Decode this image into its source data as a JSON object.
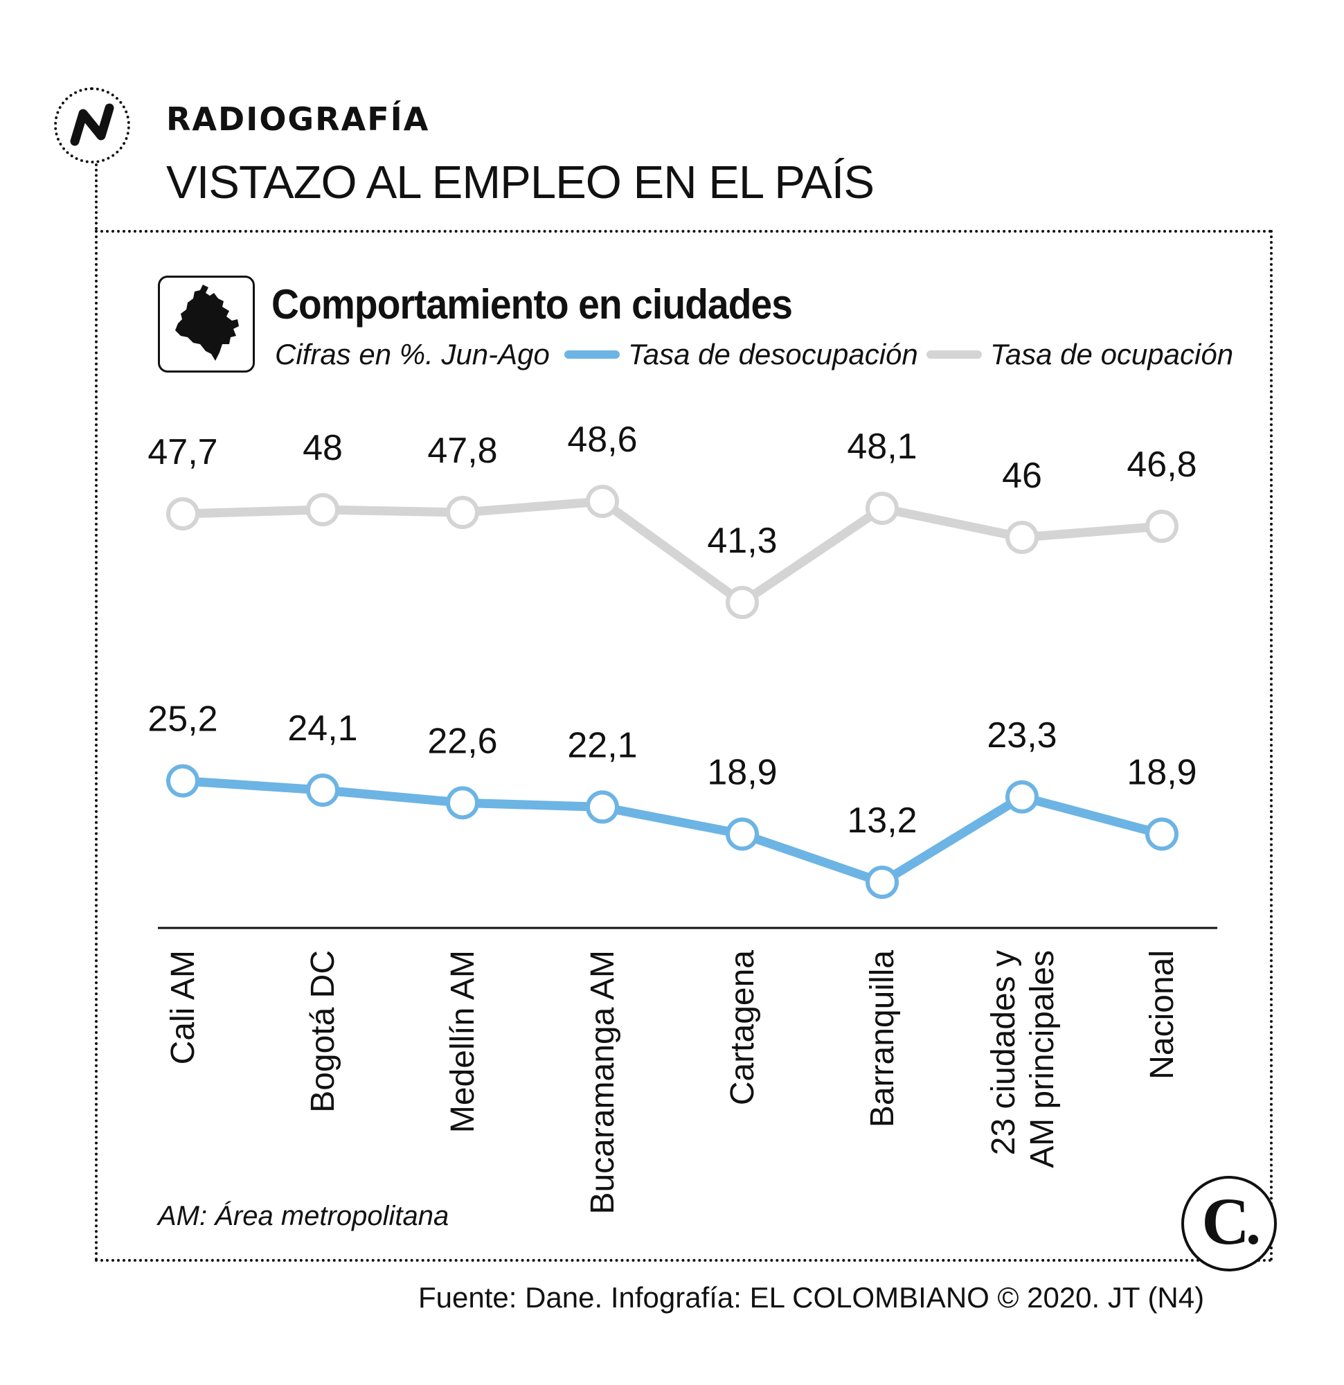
{
  "header": {
    "kicker": "RADIOGRAFÍA",
    "headline": "VISTAZO AL EMPLEO EN EL PAÍS"
  },
  "colors": {
    "desocupacion": "#6cb4e4",
    "ocupacion": "#d4d4d4",
    "text": "#111111"
  },
  "icons": {
    "brand": "n-logo-icon",
    "map": "colombia-map-icon",
    "publisher": "el-colombiano-c-icon"
  },
  "chart_data": {
    "type": "line",
    "title": "Comportamiento en ciudades",
    "subtitle": "Cifras en %. Jun-Ago",
    "categories": [
      "Cali AM",
      "Bogotá DC",
      "Medellín AM",
      "Bucaramanga AM",
      "Cartagena",
      "Barranquilla",
      "23 ciudades y AM principales",
      "Nacional"
    ],
    "category_lines": [
      [
        "Cali AM"
      ],
      [
        "Bogotá DC"
      ],
      [
        "Medellín AM"
      ],
      [
        "Bucaramanga AM"
      ],
      [
        "Cartagena"
      ],
      [
        "Barranquilla"
      ],
      [
        "23 ciudades y",
        "AM principales"
      ],
      [
        "Nacional"
      ]
    ],
    "series": [
      {
        "name": "Tasa de desocupación",
        "values": [
          25.2,
          24.1,
          22.6,
          22.1,
          18.9,
          13.2,
          23.3,
          18.9
        ],
        "labels": [
          "25,2",
          "24,1",
          "22,6",
          "22,1",
          "18,9",
          "13,2",
          "23,3",
          "18,9"
        ]
      },
      {
        "name": "Tasa de ocupación",
        "values": [
          47.7,
          48,
          47.8,
          48.6,
          41.3,
          48.1,
          46,
          46.8
        ],
        "labels": [
          "47,7",
          "48",
          "47,8",
          "48,6",
          "41,3",
          "48,1",
          "46",
          "46,8"
        ]
      }
    ],
    "legend": "top",
    "xlabel": "",
    "ylabel": "",
    "grid": false
  },
  "footer": {
    "footnote": "AM: Área metropolitana",
    "source": "Fuente: Dane. Infografía: EL COLOMBIANO © 2020. JT (N4)"
  }
}
